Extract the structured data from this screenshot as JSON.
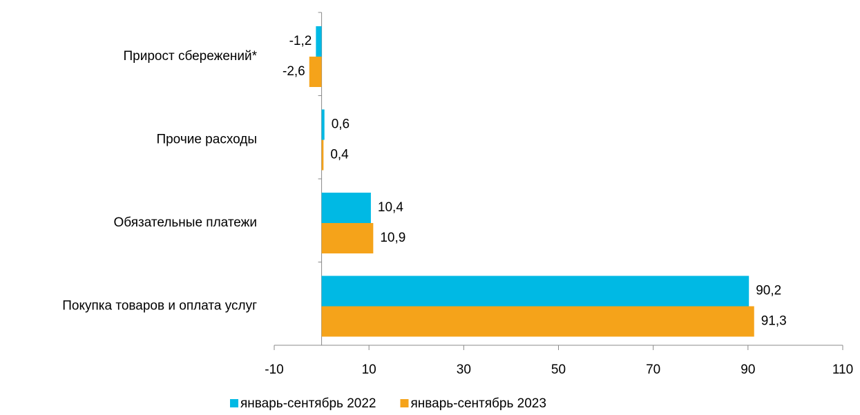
{
  "chart_data": {
    "type": "hbar",
    "categories": [
      "Прирост сбережений*",
      "Прочие расходы",
      "Обязательные платежи",
      "Покупка товаров и оплата услуг"
    ],
    "series": [
      {
        "name": "январь-сентябрь 2022",
        "color": "#00b9e4",
        "values": [
          -1.2,
          0.6,
          10.4,
          90.2
        ],
        "value_labels": [
          "-1,2",
          "0,6",
          "10,4",
          "90,2"
        ]
      },
      {
        "name": "январь-сентябрь 2023",
        "color": "#f5a31a",
        "values": [
          -2.6,
          0.4,
          10.9,
          91.3
        ],
        "value_labels": [
          "-2,6",
          "0,4",
          "10,9",
          "91,3"
        ]
      }
    ],
    "xlim": [
      -10,
      110
    ],
    "xticks": [
      -10,
      10,
      30,
      50,
      70,
      90,
      110
    ],
    "legend": "bottom"
  }
}
